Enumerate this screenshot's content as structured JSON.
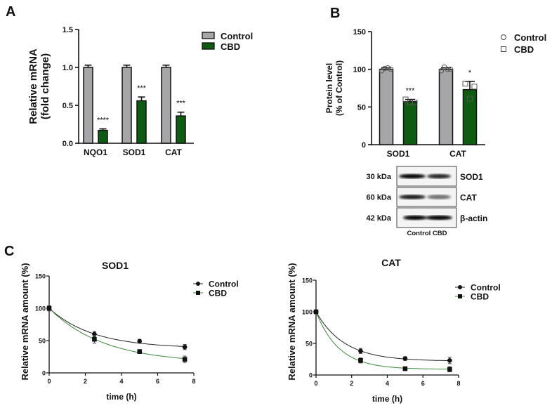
{
  "panel_labels": [
    "A",
    "B",
    "C"
  ],
  "colors": {
    "control": "#a6a6a8",
    "cbd": "#0d5c12",
    "cbd_line": "#3a8a3a",
    "control_line": "#222222"
  },
  "chart_data": [
    {
      "id": "A",
      "type": "bar",
      "title": "",
      "ylabel": [
        "Relative mRNA",
        "(fold change)"
      ],
      "xlabel": "",
      "ylim": [
        0,
        1.5
      ],
      "yticks": [
        "0.0",
        "0.5",
        "1.0",
        "1.5"
      ],
      "categories": [
        "NQO1",
        "SOD1",
        "CAT"
      ],
      "legend": {
        "position": "top-right",
        "entries": [
          "Control",
          "CBD"
        ]
      },
      "series": [
        {
          "name": "Control",
          "values": [
            1.0,
            1.0,
            1.0
          ],
          "errors": [
            0.03,
            0.03,
            0.03
          ]
        },
        {
          "name": "CBD",
          "values": [
            0.17,
            0.56,
            0.36
          ],
          "errors": [
            0.02,
            0.05,
            0.05
          ]
        }
      ],
      "significance": [
        "****",
        "***",
        "***"
      ]
    },
    {
      "id": "B",
      "type": "bar",
      "title": "",
      "ylabel": [
        "Protein level",
        "(% of Control)"
      ],
      "ylim": [
        0,
        150
      ],
      "yticks": [
        "0",
        "50",
        "100",
        "150"
      ],
      "categories": [
        "SOD1",
        "CAT"
      ],
      "legend": {
        "position": "top-right",
        "entries": [
          "Control",
          "CBD"
        ]
      },
      "series": [
        {
          "name": "Control",
          "values": [
            100,
            100
          ],
          "errors": [
            2,
            2
          ],
          "points": [
            [
              98,
              101,
              102,
              100
            ],
            [
              98,
              103,
              100,
              100
            ]
          ]
        },
        {
          "name": "CBD",
          "values": [
            57,
            73
          ],
          "errors": [
            3,
            11
          ],
          "points": [
            [
              60,
              56,
              56
            ],
            [
              81,
              61,
              77
            ]
          ]
        }
      ],
      "significance": [
        "***",
        "*"
      ],
      "blot": {
        "rows": [
          {
            "marker": "30 kDa",
            "protein": "SOD1",
            "intensity": [
              1.0,
              0.85
            ]
          },
          {
            "marker": "60 kDa",
            "protein": "CAT",
            "intensity": [
              0.9,
              0.55
            ]
          },
          {
            "marker": "42 kDa",
            "protein": "β-actin",
            "intensity": [
              1.0,
              1.0
            ]
          }
        ],
        "lanes": "Control CBD"
      }
    },
    {
      "id": "C-SOD1",
      "type": "line",
      "title": "SOD1",
      "xlabel": "time (h)",
      "ylabel": "Relative mRNA amount (%)",
      "xlim": [
        0,
        8
      ],
      "ylim": [
        0,
        150
      ],
      "xticks": [
        "0",
        "2",
        "4",
        "6",
        "8"
      ],
      "yticks": [
        "0",
        "50",
        "100",
        "150"
      ],
      "legend": {
        "position": "top-right",
        "entries": [
          "Control",
          "CBD"
        ]
      },
      "x": [
        0,
        2.5,
        5,
        7.5
      ],
      "series": [
        {
          "name": "Control",
          "values": [
            100,
            60,
            49,
            40
          ],
          "errors": [
            4,
            4,
            3,
            4
          ],
          "fit": {
            "plateau": 38,
            "k": 0.41
          }
        },
        {
          "name": "CBD",
          "values": [
            100,
            52,
            33,
            21
          ],
          "errors": [
            4,
            6,
            3,
            5
          ],
          "fit": {
            "plateau": 15,
            "k": 0.33
          }
        }
      ]
    },
    {
      "id": "C-CAT",
      "type": "line",
      "title": "CAT",
      "xlabel": "time (h)",
      "ylabel": "Relative mRNA amount (%)",
      "xlim": [
        0,
        8
      ],
      "ylim": [
        0,
        150
      ],
      "xticks": [
        "0",
        "2",
        "4",
        "6",
        "8"
      ],
      "yticks": [
        "0",
        "50",
        "100",
        "150"
      ],
      "legend": {
        "position": "top-right",
        "entries": [
          "Control",
          "CBD"
        ]
      },
      "x": [
        0,
        2.5,
        5,
        7.5
      ],
      "series": [
        {
          "name": "Control",
          "values": [
            100,
            38,
            26,
            23
          ],
          "errors": [
            2,
            4,
            3,
            5
          ],
          "fit": {
            "plateau": 22,
            "k": 0.63
          }
        },
        {
          "name": "CBD",
          "values": [
            100,
            23,
            10,
            9
          ],
          "errors": [
            2,
            4,
            2,
            4
          ],
          "fit": {
            "plateau": 9,
            "k": 0.78
          }
        }
      ]
    }
  ]
}
